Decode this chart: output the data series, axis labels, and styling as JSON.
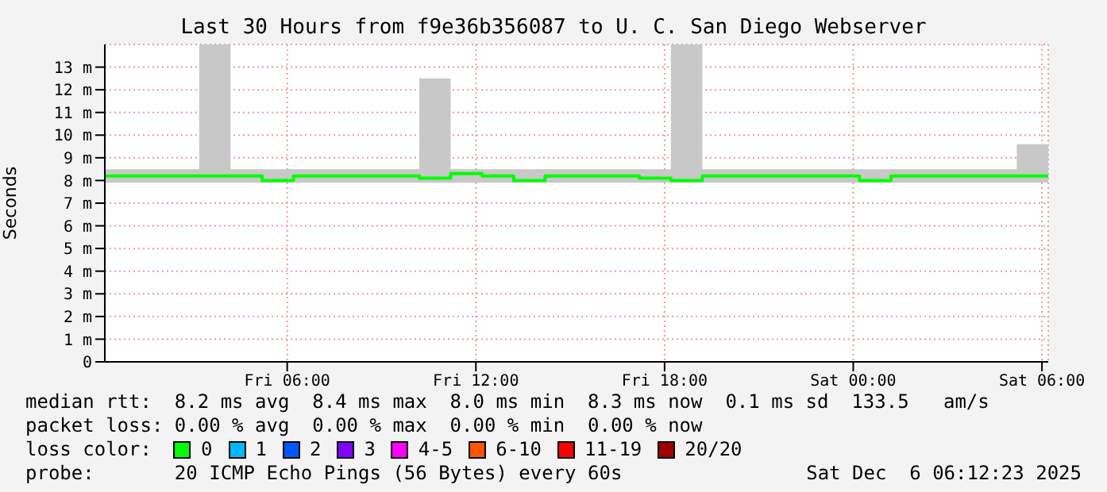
{
  "chart_data": {
    "type": "step",
    "title": "Last 30 Hours from f9e36b356087 to U. C. San Diego Webserver",
    "ylabel": "Seconds",
    "x": [
      "2025-12-05T00:12",
      "2025-12-05T01:12",
      "2025-12-05T02:12",
      "2025-12-05T03:12",
      "2025-12-05T04:12",
      "2025-12-05T05:12",
      "2025-12-05T06:12",
      "2025-12-05T07:12",
      "2025-12-05T08:12",
      "2025-12-05T09:12",
      "2025-12-05T10:12",
      "2025-12-05T11:12",
      "2025-12-05T12:12",
      "2025-12-05T13:12",
      "2025-12-05T14:12",
      "2025-12-05T15:12",
      "2025-12-05T16:12",
      "2025-12-05T17:12",
      "2025-12-05T18:12",
      "2025-12-05T19:12",
      "2025-12-05T20:12",
      "2025-12-05T21:12",
      "2025-12-05T22:12",
      "2025-12-05T23:12",
      "2025-12-06T00:12",
      "2025-12-06T01:12",
      "2025-12-06T02:12",
      "2025-12-06T03:12",
      "2025-12-06T04:12",
      "2025-12-06T05:12",
      "2025-12-06T06:12"
    ],
    "series": [
      {
        "color": "#00ff00",
        "values": [
          8.2,
          8.2,
          8.2,
          8.2,
          8.2,
          8.0,
          8.2,
          8.2,
          8.2,
          8.2,
          8.1,
          8.3,
          8.2,
          8.0,
          8.2,
          8.2,
          8.2,
          8.1,
          8.0,
          8.2,
          8.2,
          8.2,
          8.2,
          8.2,
          8.0,
          8.2,
          8.2,
          8.2,
          8.2,
          8.2,
          8.2
        ],
        "lower": [
          7.9,
          7.9,
          7.9,
          7.9,
          7.9,
          7.9,
          7.9,
          7.9,
          7.9,
          7.9,
          7.9,
          7.9,
          7.9,
          7.9,
          7.9,
          7.9,
          7.9,
          7.9,
          7.9,
          7.9,
          7.9,
          7.9,
          7.9,
          7.9,
          7.9,
          7.9,
          7.9,
          7.9,
          7.9,
          7.9,
          7.9
        ],
        "upper": [
          8.5,
          8.5,
          8.5,
          14,
          8.5,
          8.5,
          8.5,
          8.5,
          8.5,
          8.5,
          12.5,
          8.5,
          8.5,
          8.5,
          8.5,
          8.5,
          8.5,
          8.5,
          14,
          8.5,
          8.5,
          8.5,
          8.5,
          8.5,
          8.5,
          8.5,
          8.5,
          8.5,
          8.5,
          9.6,
          8.5
        ]
      }
    ],
    "xlim": [
      "2025-12-05T00:12",
      "2025-12-06T06:12"
    ],
    "xticks": [
      {
        "value": "2025-12-05T06:00",
        "label": "Fri 06:00"
      },
      {
        "value": "2025-12-05T12:00",
        "label": "Fri 12:00"
      },
      {
        "value": "2025-12-05T18:00",
        "label": "Fri 18:00"
      },
      {
        "value": "2025-12-06T00:00",
        "label": "Sat 00:00"
      },
      {
        "value": "2025-12-06T06:00",
        "label": "Sat 06:00"
      }
    ],
    "ylim": [
      0,
      14
    ],
    "yticks": [
      0,
      {
        "value": 1,
        "label": "1 m"
      },
      {
        "value": 2,
        "label": "2 m"
      },
      {
        "value": 3,
        "label": "3 m"
      },
      {
        "value": 4,
        "label": "4 m"
      },
      {
        "value": 5,
        "label": "5 m"
      },
      {
        "value": 6,
        "label": "6 m"
      },
      {
        "value": 7,
        "label": "7 m"
      },
      {
        "value": 8,
        "label": "8 m"
      },
      {
        "value": 9,
        "label": "9 m"
      },
      {
        "value": 10,
        "label": "10 m"
      },
      {
        "value": 11,
        "label": "11 m"
      },
      {
        "value": 12,
        "label": "12 m"
      },
      {
        "value": 13,
        "label": "13 m"
      }
    ],
    "grid": true,
    "legend": false,
    "annotations": [
      "median rtt:  8.2 ms avg  8.4 ms max  8.0 ms min  8.3 ms now  0.1 ms sd  133.5   am/s",
      "packet loss: 0.00 % avg  0.00 % max  0.00 % min  0.00 % now",
      "loss color:",
      "0",
      "1",
      "2",
      "3",
      "4-5",
      "6-10",
      "11-19",
      "20/20",
      "probe:       20 ICMP Echo Pings (56 Bytes) every 60s",
      "Sat Dec  6 06:12:23 2025"
    ]
  }
}
